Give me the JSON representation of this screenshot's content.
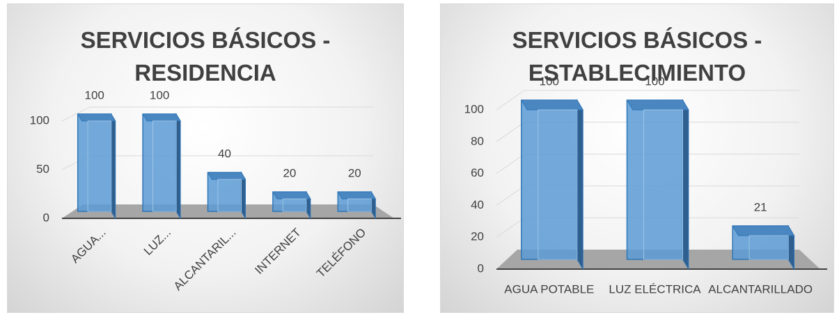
{
  "chart_data": [
    {
      "type": "bar3d",
      "title": "SERVICIOS BÁSICOS - RESIDENCIA",
      "categories": [
        "AGUA...",
        "LUZ...",
        "ALCANTARIL...",
        "INTERNET",
        "TELÉFONO"
      ],
      "values": [
        100,
        100,
        40,
        20,
        20
      ],
      "color": "#5b9bd5",
      "ylim": [
        0,
        100
      ],
      "yticks": [
        0,
        50,
        100
      ],
      "grid": true
    },
    {
      "type": "bar3d",
      "title": "SERVICIOS BÁSICOS - ESTABLECIMIENTO",
      "categories": [
        "AGUA POTABLE",
        "LUZ ELÉCTRICA",
        "ALCANTARILLADO"
      ],
      "values": [
        100,
        100,
        21
      ],
      "color": "#5b9bd5",
      "ylim": [
        0,
        100
      ],
      "yticks": [
        0,
        20,
        40,
        60,
        80,
        100
      ],
      "grid": true
    }
  ]
}
